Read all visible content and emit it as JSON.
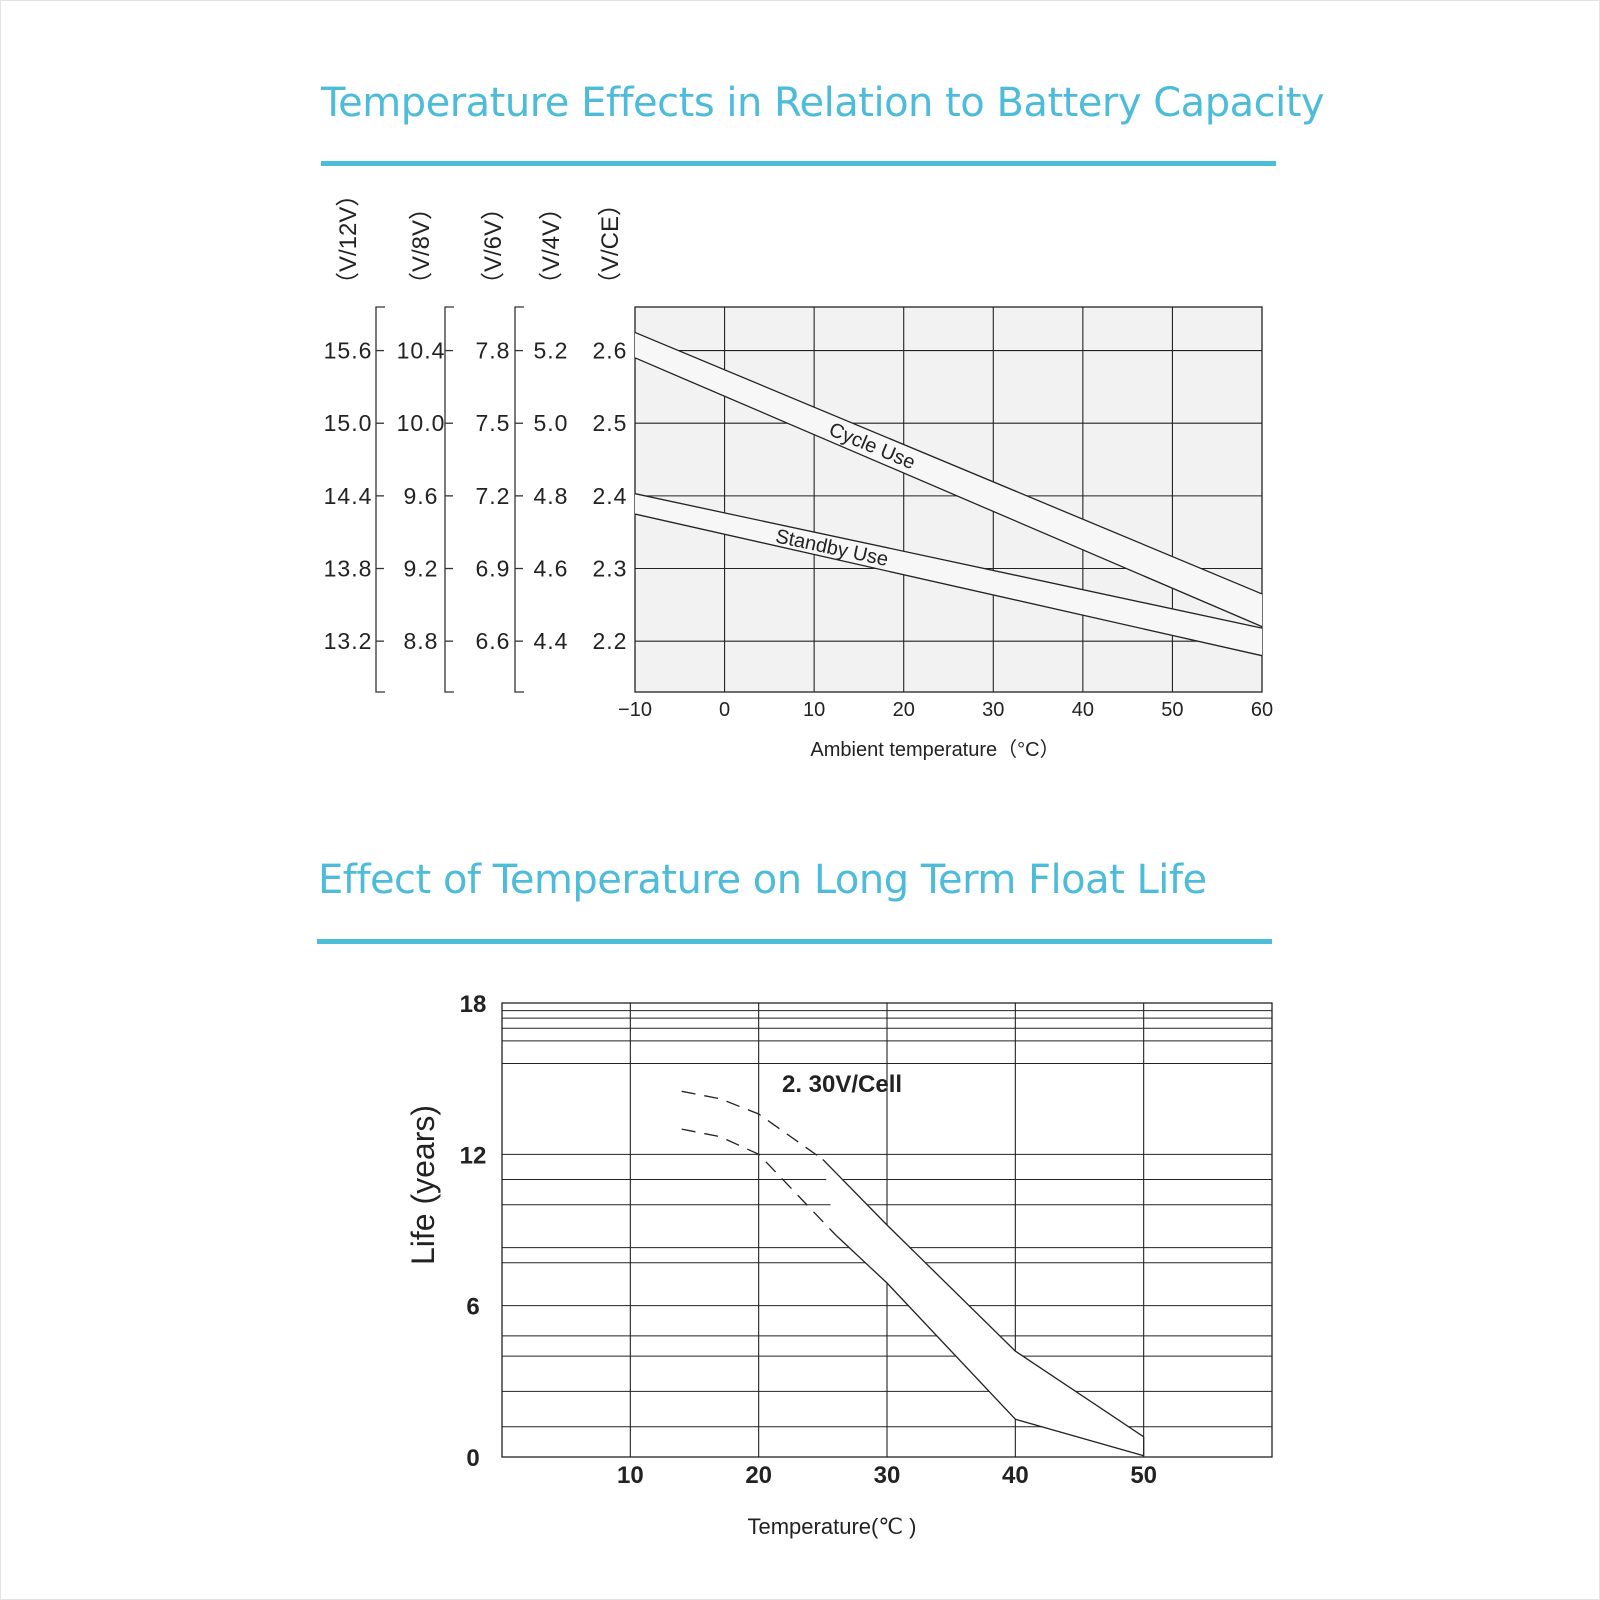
{
  "charts": [
    {
      "title": "Temperature Effects in Relation to Battery Capacity",
      "chart_data": {
        "type": "line",
        "title": "Temperature Effects in Relation to Battery Capacity",
        "xlabel": "Ambient  temperature（°C）",
        "xlim": [
          -10,
          60
        ],
        "x_ticks": [
          "−10",
          "0",
          "10",
          "20",
          "30",
          "40",
          "50",
          "60"
        ],
        "y_axes": [
          {
            "label": "（V/12V）",
            "ticks": [
              "15.6",
              "15.0",
              "14.4",
              "13.8",
              "13.2"
            ]
          },
          {
            "label": "（V/8V）",
            "ticks": [
              "10.4",
              "10.0",
              "9.6",
              "9.2",
              "8.8"
            ]
          },
          {
            "label": "（V/6V）",
            "ticks": [
              "7.8",
              "7.5",
              "7.2",
              "6.9",
              "6.6"
            ]
          },
          {
            "label": "（V/4V）",
            "ticks": [
              "5.2",
              "5.0",
              "4.8",
              "4.6",
              "4.4"
            ]
          },
          {
            "label": "（V/CE）",
            "ticks": [
              "2.6",
              "2.5",
              "2.4",
              "2.3",
              "2.2"
            ]
          }
        ],
        "ylim": [
          2.13,
          2.66
        ],
        "grid": true,
        "series": [
          {
            "name": "Cycle Use",
            "x": [
              -10,
              60
            ],
            "upper": [
              2.625,
              2.265
            ],
            "lower": [
              2.59,
              2.22
            ]
          },
          {
            "name": "Standby Use",
            "x": [
              -10,
              60
            ],
            "upper": [
              2.403,
              2.218
            ],
            "lower": [
              2.375,
              2.18
            ]
          }
        ]
      }
    },
    {
      "title": "Effect of Temperature on Long Term Float Life",
      "chart_data": {
        "type": "line",
        "title": "Effect of Temperature on Long Term Float Life",
        "xlabel": "Temperature(℃ )",
        "ylabel": "Life (years)",
        "xlim": [
          0,
          60
        ],
        "ylim": [
          0,
          18
        ],
        "x_ticks": [
          "10",
          "20",
          "30",
          "40",
          "50"
        ],
        "y_ticks": [
          "0",
          "6",
          "12",
          "18"
        ],
        "grid": true,
        "annotation": "2. 30V/Cell",
        "series": [
          {
            "name": "upper",
            "dashed_until": 25,
            "points": [
              [
                14,
                14.5
              ],
              [
                17,
                14.2
              ],
              [
                20,
                13.6
              ],
              [
                25,
                11.8
              ],
              [
                30,
                9.2
              ],
              [
                40,
                4.2
              ],
              [
                50,
                0.8
              ]
            ]
          },
          {
            "name": "lower",
            "dashed_until": 26,
            "points": [
              [
                14,
                13.0
              ],
              [
                17,
                12.7
              ],
              [
                20,
                12.0
              ],
              [
                26,
                8.8
              ],
              [
                30,
                6.9
              ],
              [
                40,
                1.5
              ],
              [
                50,
                0.05
              ]
            ]
          }
        ]
      }
    }
  ]
}
